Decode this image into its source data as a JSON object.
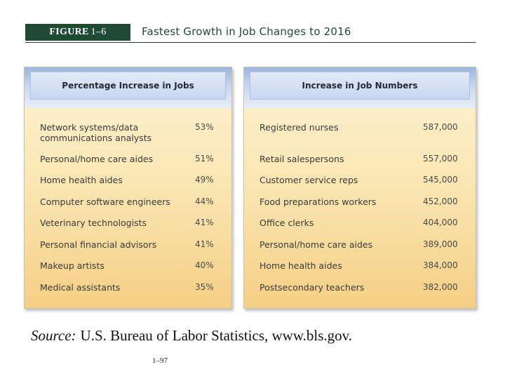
{
  "figure": {
    "label_bold": "FIGURE",
    "label_number": "1–6",
    "title": "Fastest Growth in Job Changes to 2016"
  },
  "left_table": {
    "header": "Percentage Increase in Jobs",
    "rows": [
      {
        "name": "Network systems/data communications analysts",
        "value": "53%"
      },
      {
        "name": "Personal/home care aides",
        "value": "51%"
      },
      {
        "name": "Home health aides",
        "value": "49%"
      },
      {
        "name": "Computer software engineers",
        "value": "44%"
      },
      {
        "name": "Veterinary technologists",
        "value": "41%"
      },
      {
        "name": "Personal financial advisors",
        "value": "41%"
      },
      {
        "name": "Makeup artists",
        "value": "40%"
      },
      {
        "name": "Medical assistants",
        "value": "35%"
      }
    ]
  },
  "right_table": {
    "header": "Increase in Job Numbers",
    "rows": [
      {
        "name": "Registered nurses",
        "value": "587,000"
      },
      {
        "name": "Retail salespersons",
        "value": "557,000"
      },
      {
        "name": "Customer service reps",
        "value": "545,000"
      },
      {
        "name": "Food preparations workers",
        "value": "452,000"
      },
      {
        "name": "Office clerks",
        "value": "404,000"
      },
      {
        "name": "Personal/home care aides",
        "value": "389,000"
      },
      {
        "name": "Home health aides",
        "value": "384,000"
      },
      {
        "name": "Postsecondary teachers",
        "value": "382,000"
      }
    ]
  },
  "source": {
    "label": "Source:",
    "text": "U.S. Bureau of Labor Statistics, www.bls.gov."
  },
  "page_number": "1–97",
  "colors": {
    "figure_label_bg": "#1f4a35",
    "header_blue": "#c7d7ef",
    "body_gold": "#f9e4ad"
  }
}
